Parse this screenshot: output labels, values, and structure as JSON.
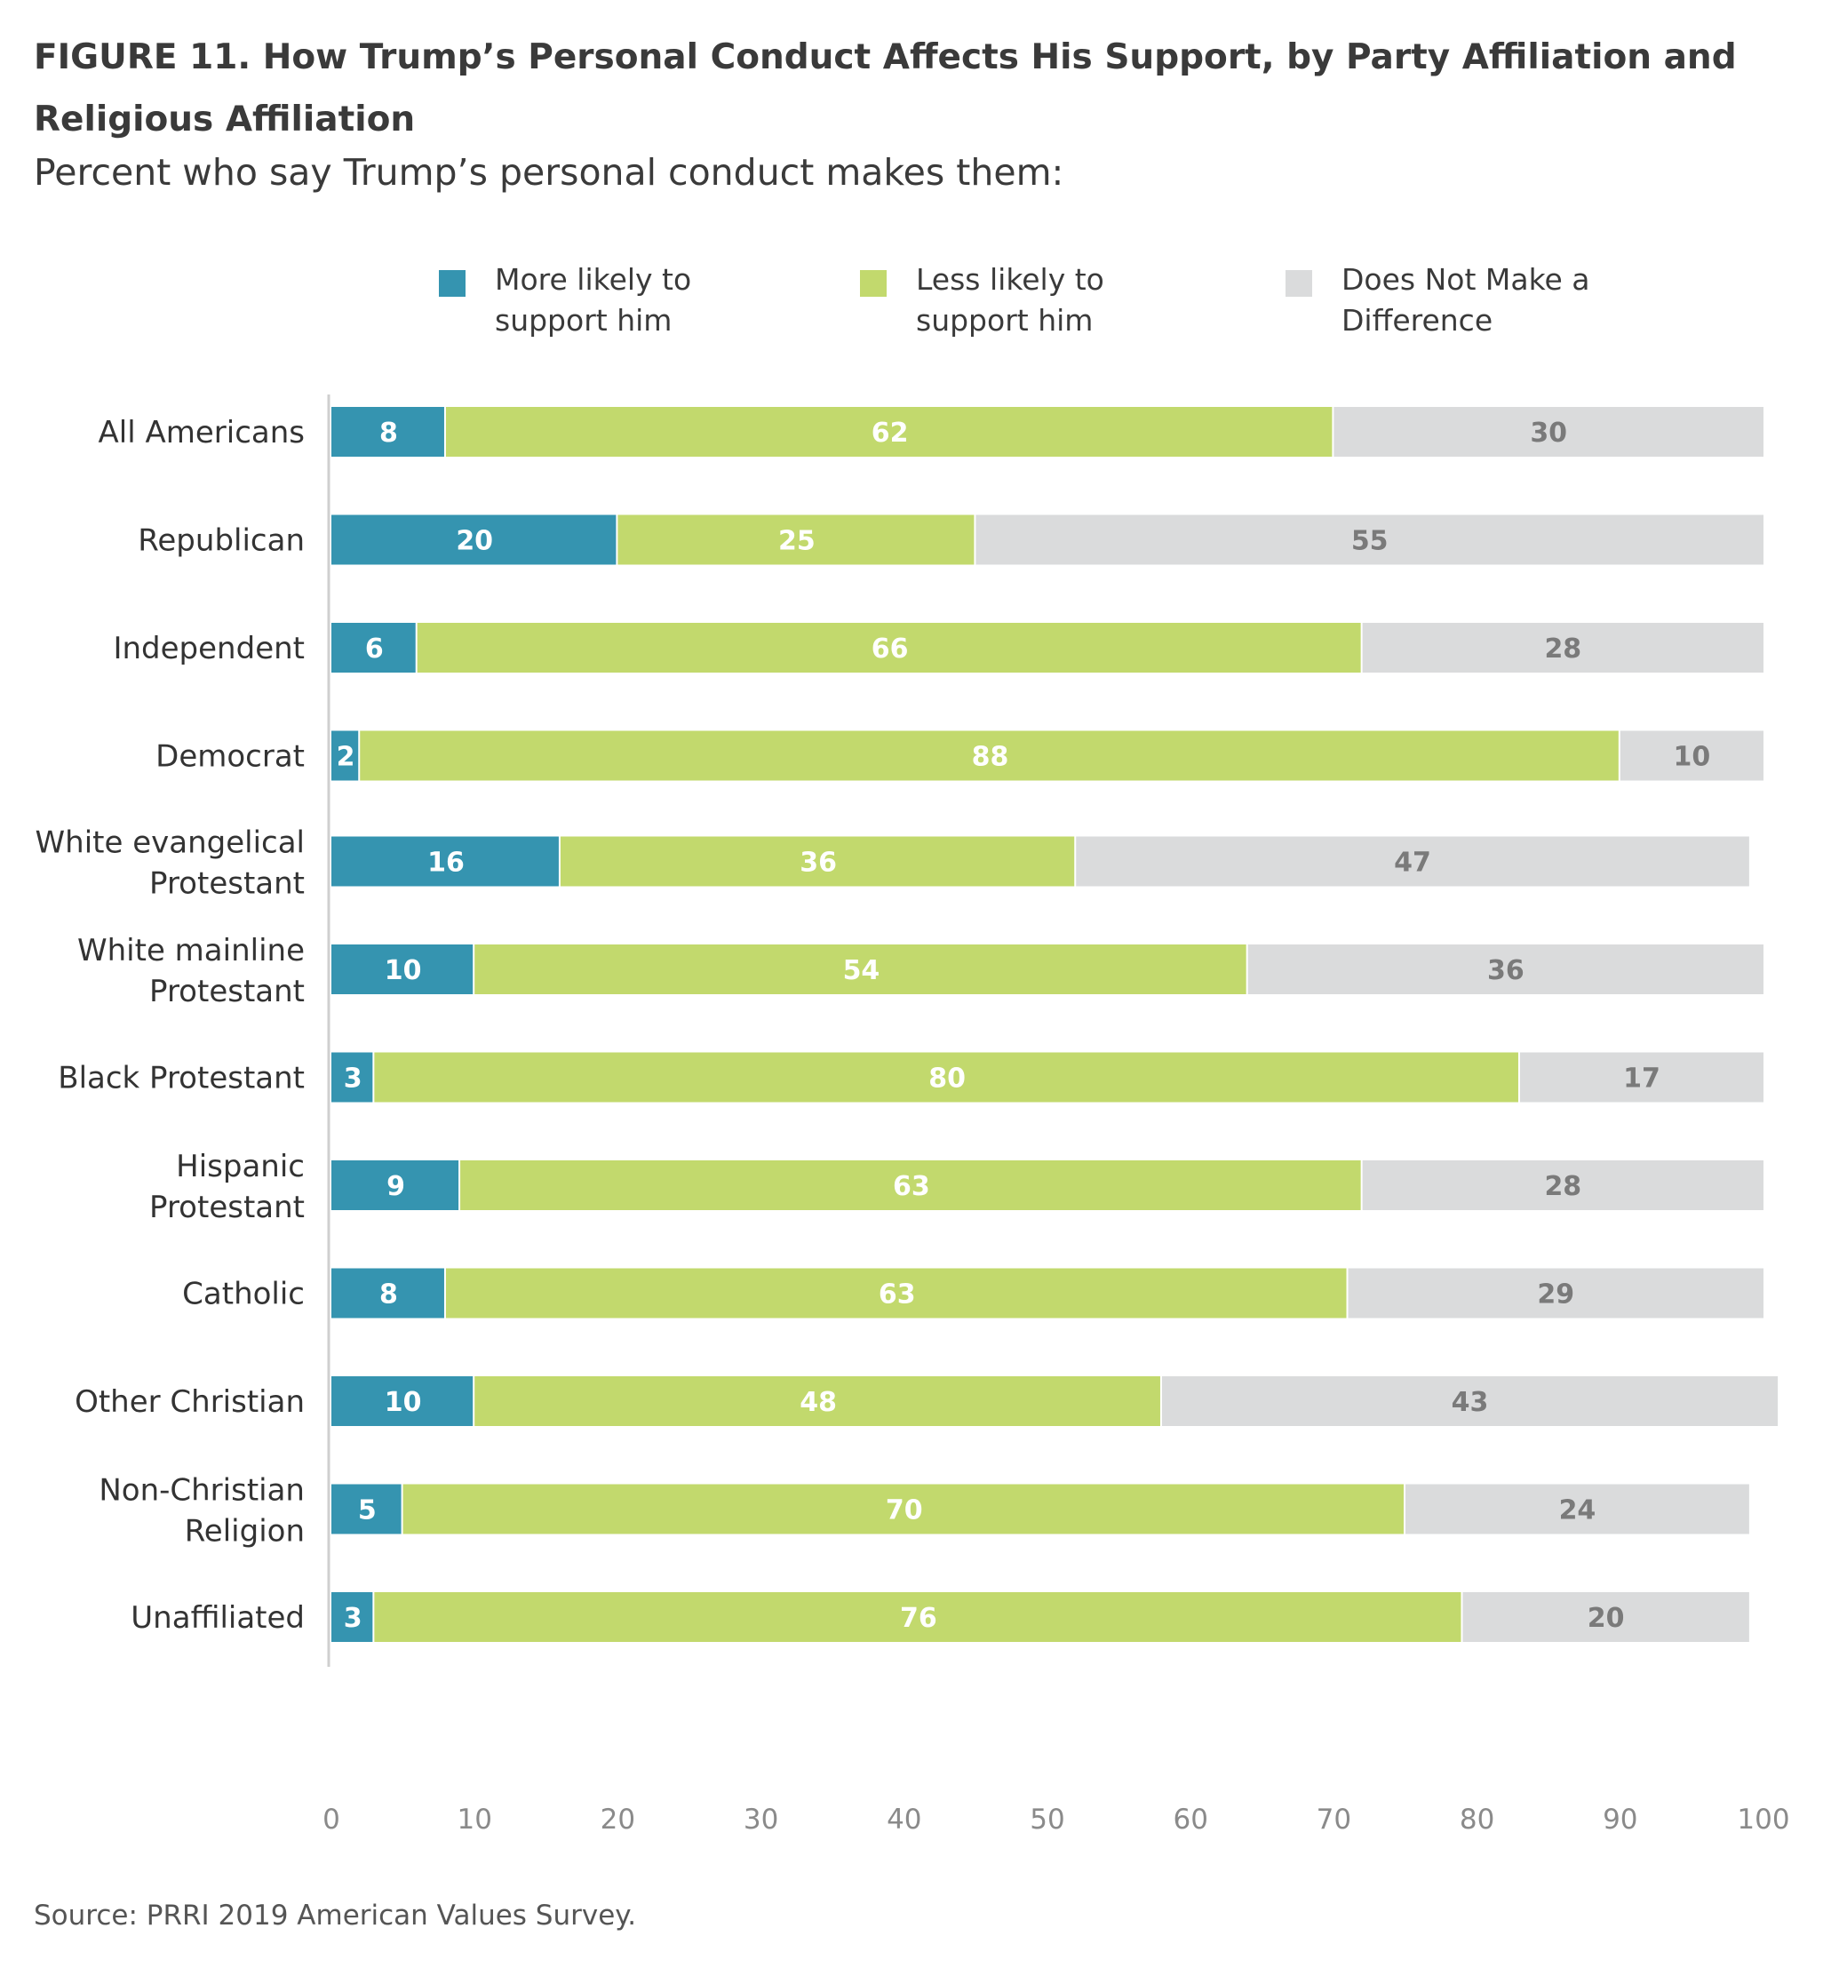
{
  "header": {
    "title": "FIGURE 11.  How Trump’s Personal Conduct Affects His Support, by Party Affiliation and Religious Affiliation",
    "subtitle": "Percent who say Trump’s personal conduct makes them:"
  },
  "legend": [
    {
      "label": "More likely to support him",
      "color": "#3594b0"
    },
    {
      "label": "Less likely to support him",
      "color": "#c2d96d"
    },
    {
      "label": "Does Not Make a Difference",
      "color": "#dadbdc"
    }
  ],
  "footer": {
    "source": "Source: PRRI 2019 American Values Survey."
  },
  "chart_data": {
    "type": "bar",
    "orientation": "horizontal",
    "stacked": true,
    "categories": [
      "All Americans",
      "Republican",
      "Independent",
      "Democrat",
      "White evangelical Protestant",
      "White mainline Protestant",
      "Black Protestant",
      "Hispanic Protestant",
      "Catholic",
      "Other Christian",
      "Non-Christian Religion",
      "Unaffiliated"
    ],
    "groups": [
      [
        "All Americans",
        "Republican",
        "Independent",
        "Democrat"
      ],
      [
        "White evangelical Protestant",
        "White mainline Protestant",
        "Black Protestant",
        "Hispanic Protestant",
        "Catholic",
        "Other Christian",
        "Non-Christian Religion",
        "Unaffiliated"
      ]
    ],
    "series": [
      {
        "name": "More likely to support him",
        "color": "#3594b0",
        "label_color": "#ffffff",
        "values": [
          8,
          20,
          6,
          2,
          16,
          10,
          3,
          9,
          8,
          10,
          5,
          3
        ]
      },
      {
        "name": "Less likely to support him",
        "color": "#c2d96d",
        "label_color": "#ffffff",
        "values": [
          62,
          25,
          66,
          88,
          36,
          54,
          80,
          63,
          63,
          48,
          70,
          76
        ]
      },
      {
        "name": "Does Not Make a Difference",
        "color": "#dadbdc",
        "label_color": "#7a7a7a",
        "values": [
          30,
          55,
          28,
          10,
          47,
          36,
          17,
          28,
          29,
          43,
          24,
          20
        ]
      }
    ],
    "xlim": [
      0,
      100
    ],
    "xticks": [
      0,
      10,
      20,
      30,
      40,
      50,
      60,
      70,
      80,
      90,
      100
    ],
    "grid": false,
    "legend_position": "top"
  }
}
